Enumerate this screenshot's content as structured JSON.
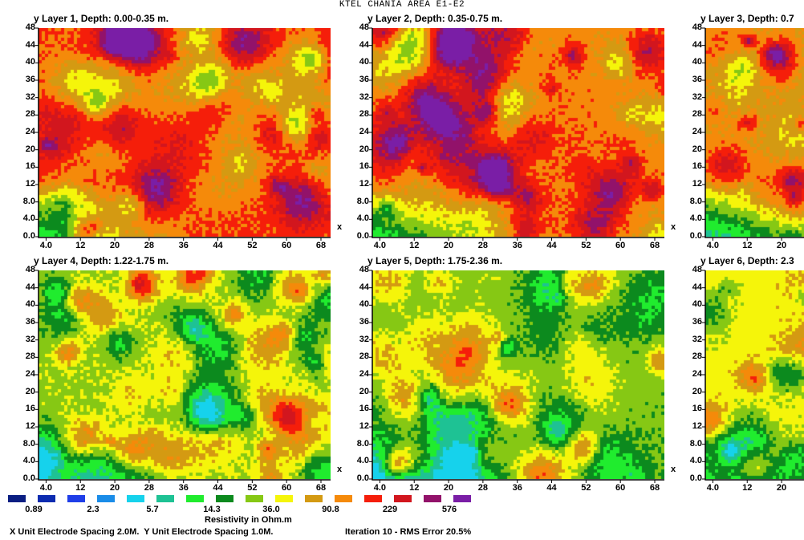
{
  "title": "KTEL CHANIA AREA E1-E2",
  "chart_data": {
    "type": "heatmap",
    "title": "KTEL CHANIA AREA E1-E2",
    "x_axis_label": "x",
    "y_axis_label": "y",
    "x_ticks": [
      "4.0",
      "12",
      "20",
      "28",
      "36",
      "44",
      "52",
      "60",
      "68"
    ],
    "y_ticks": [
      "0.0",
      "4.0",
      "8.0",
      "12",
      "16",
      "20",
      "24",
      "28",
      "32",
      "36",
      "40",
      "44",
      "48"
    ],
    "xlim": [
      0,
      68
    ],
    "ylim": [
      0,
      48
    ],
    "panels": [
      {
        "title": "y Layer 1, Depth: 0.00-0.35 m.",
        "x_ticks": [
          "4.0",
          "12",
          "20",
          "28",
          "36",
          "44",
          "52",
          "60",
          "68"
        ],
        "tone": 0.78
      },
      {
        "title": "y Layer 2, Depth: 0.35-0.75 m.",
        "x_ticks": [
          "4.0",
          "12",
          "20",
          "28",
          "36",
          "44",
          "52",
          "60",
          "68"
        ],
        "tone": 0.74
      },
      {
        "title": "y Layer 3, Depth: 0.7",
        "x_ticks": [
          "4.0",
          "12",
          "20"
        ],
        "tone": 0.68
      },
      {
        "title": "y Layer 4, Depth: 1.22-1.75 m.",
        "x_ticks": [
          "4.0",
          "12",
          "20",
          "28",
          "36",
          "44",
          "52",
          "60",
          "68"
        ],
        "tone": 0.55
      },
      {
        "title": "y Layer 5, Depth: 1.75-2.36 m.",
        "x_ticks": [
          "4.0",
          "12",
          "20",
          "28",
          "36",
          "44",
          "52",
          "60",
          "68"
        ],
        "tone": 0.52
      },
      {
        "title": "y Layer 6, Depth: 2.3",
        "x_ticks": [
          "4.0",
          "12",
          "20"
        ],
        "tone": 0.6
      }
    ],
    "legend": {
      "colors": [
        "#0a1e82",
        "#0c2bb0",
        "#1f3ee8",
        "#1a8ce8",
        "#16d2ec",
        "#1ec294",
        "#20ec2e",
        "#0c8a1e",
        "#86c814",
        "#f5f50a",
        "#d49a12",
        "#f58a0a",
        "#f51e0a",
        "#d2161e",
        "#92126a",
        "#7a1ea6"
      ],
      "labels": [
        "0.89",
        "2.3",
        "5.7",
        "14.3",
        "36.0",
        "90.8",
        "229",
        "576"
      ],
      "title": "Resistivity in Ohm.m"
    }
  },
  "footer": {
    "spacing": "X Unit Electrode Spacing 2.0M.  Y Unit Electrode Spacing 1.0M.",
    "iteration": "Iteration 10 - RMS Error 20.5%"
  }
}
